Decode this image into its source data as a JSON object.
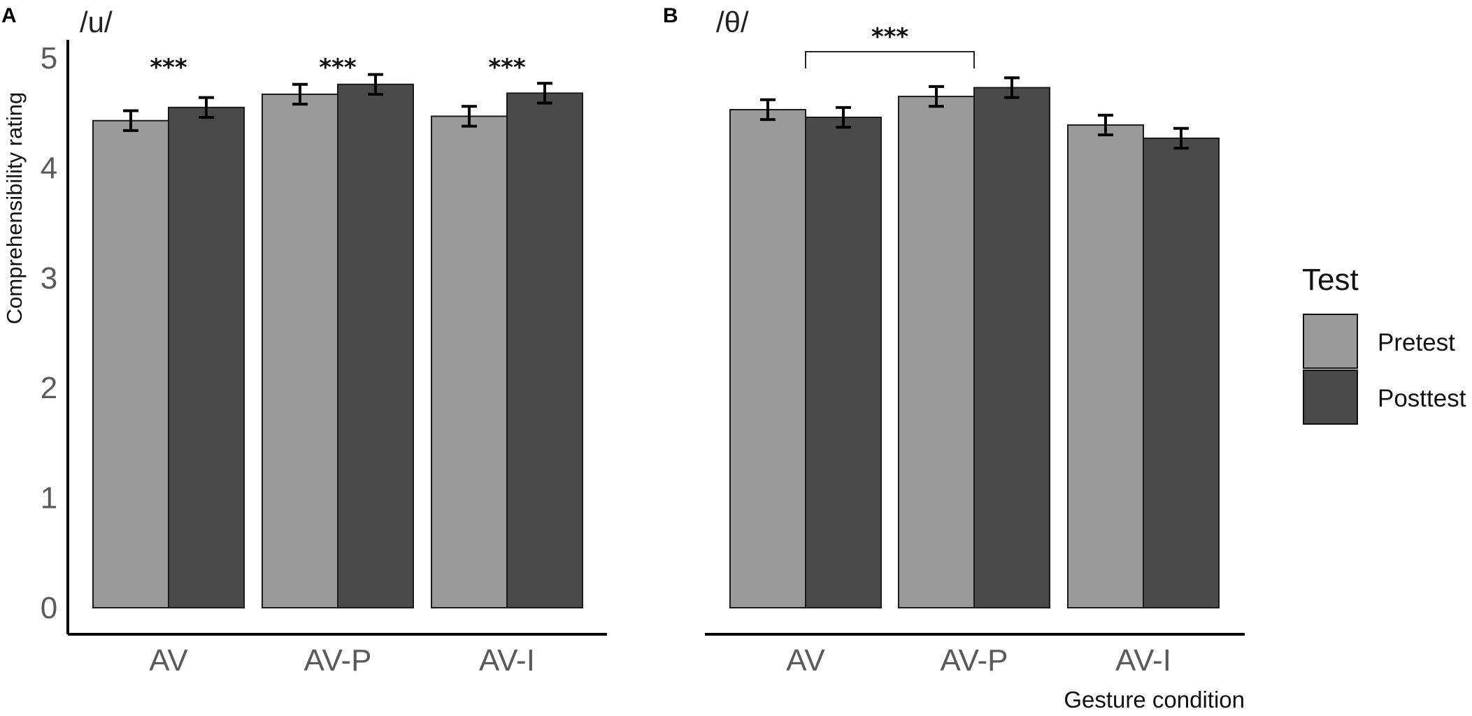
{
  "figure": {
    "x_axis_label": "Gesture condition",
    "y_axis_label": "Comprehensibility rating"
  },
  "legend": {
    "title": "Test",
    "entries": [
      {
        "label": "Pretest",
        "color": "#9a9a9a"
      },
      {
        "label": "Posttest",
        "color": "#4a4a4a"
      }
    ]
  },
  "chart_data": [
    {
      "panel": "A",
      "type": "bar",
      "title": "/u/",
      "categories": [
        "AV",
        "AV-P",
        "AV-I"
      ],
      "series": [
        {
          "name": "Pretest",
          "color": "#9a9a9a",
          "values": [
            4.43,
            4.67,
            4.47
          ],
          "errors": [
            0.09,
            0.09,
            0.09
          ]
        },
        {
          "name": "Posttest",
          "color": "#4a4a4a",
          "values": [
            4.55,
            4.76,
            4.68
          ],
          "errors": [
            0.09,
            0.09,
            0.09
          ]
        }
      ],
      "ylim": [
        0,
        5
      ],
      "yticks": [
        0,
        1,
        2,
        3,
        4,
        5
      ],
      "ylabel": "Comprehensibility rating",
      "xlabel": "",
      "annotations": [
        {
          "text": "***",
          "category": "AV",
          "bracket": false
        },
        {
          "text": "***",
          "category": "AV-P",
          "bracket": false
        },
        {
          "text": "***",
          "category": "AV-I",
          "bracket": false
        }
      ]
    },
    {
      "panel": "B",
      "type": "bar",
      "title": "/θ/",
      "categories": [
        "AV",
        "AV-P",
        "AV-I"
      ],
      "series": [
        {
          "name": "Pretest",
          "color": "#9a9a9a",
          "values": [
            4.53,
            4.65,
            4.39
          ],
          "errors": [
            0.09,
            0.09,
            0.09
          ]
        },
        {
          "name": "Posttest",
          "color": "#4a4a4a",
          "values": [
            4.46,
            4.73,
            4.27
          ],
          "errors": [
            0.09,
            0.09,
            0.09
          ]
        }
      ],
      "ylim": [
        0,
        5
      ],
      "yticks": [],
      "ylabel": "",
      "xlabel": "Gesture condition",
      "annotations": [
        {
          "text": "***",
          "from_category": "AV",
          "to_category": "AV-P",
          "bracket": true
        }
      ]
    }
  ]
}
